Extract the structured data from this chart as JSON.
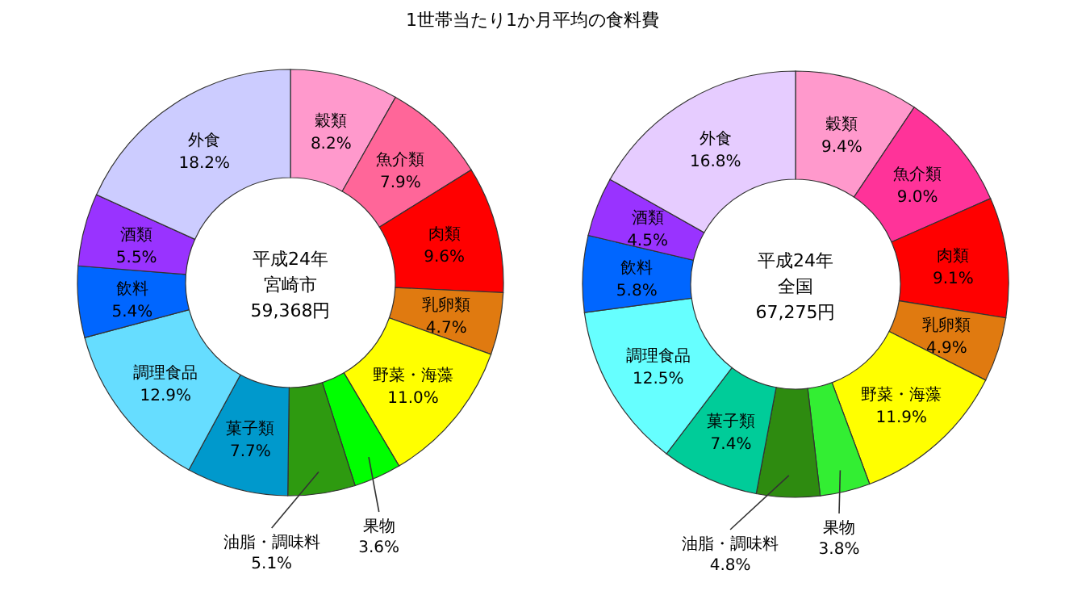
{
  "chart_data": [
    {
      "type": "donut",
      "title": "1世帯当たり1か月平均の食料費",
      "categories": [
        "穀類",
        "魚介類",
        "肉類",
        "乳卵類",
        "野菜・海藻",
        "果物",
        "油脂・調味料",
        "菓子類",
        "調理食品",
        "飲料",
        "酒類",
        "外食"
      ],
      "values": [
        8.2,
        7.9,
        9.6,
        4.7,
        11.0,
        3.6,
        5.1,
        7.7,
        12.9,
        5.4,
        5.5,
        18.2
      ],
      "value_labels": [
        "8.2%",
        "7.9%",
        "9.6%",
        "4.7%",
        "11.0%",
        "3.6%",
        "5.1%",
        "7.7%",
        "12.9%",
        "5.4%",
        "5.5%",
        "18.2%"
      ],
      "colors": [
        "#ff99cc",
        "#ff6699",
        "#ff0000",
        "#e07a10",
        "#ffff00",
        "#00ff00",
        "#2e9a10",
        "#0099cc",
        "#66ddff",
        "#0066ff",
        "#9933ff",
        "#ccccff"
      ],
      "annotations": [
        "平成24年",
        "宮崎市",
        "59,368円"
      ]
    },
    {
      "type": "donut",
      "categories": [
        "穀類",
        "魚介類",
        "肉類",
        "乳卵類",
        "野菜・海藻",
        "果物",
        "油脂・調味料",
        "菓子類",
        "調理食品",
        "飲料",
        "酒類",
        "外食"
      ],
      "values": [
        9.4,
        9.0,
        9.1,
        4.9,
        11.9,
        3.8,
        4.8,
        7.4,
        12.5,
        5.8,
        4.5,
        16.8
      ],
      "value_labels": [
        "9.4%",
        "9.0%",
        "9.1%",
        "4.9%",
        "11.9%",
        "3.8%",
        "4.8%",
        "7.4%",
        "12.5%",
        "5.8%",
        "4.5%",
        "16.8%"
      ],
      "colors": [
        "#ff99cc",
        "#ff3399",
        "#ff0000",
        "#e07a10",
        "#ffff00",
        "#33ee33",
        "#2e8b10",
        "#00cc99",
        "#66ffff",
        "#0066ff",
        "#9933ff",
        "#e6ccff"
      ],
      "annotations": [
        "平成24年",
        "全国",
        "67,275円"
      ]
    }
  ]
}
